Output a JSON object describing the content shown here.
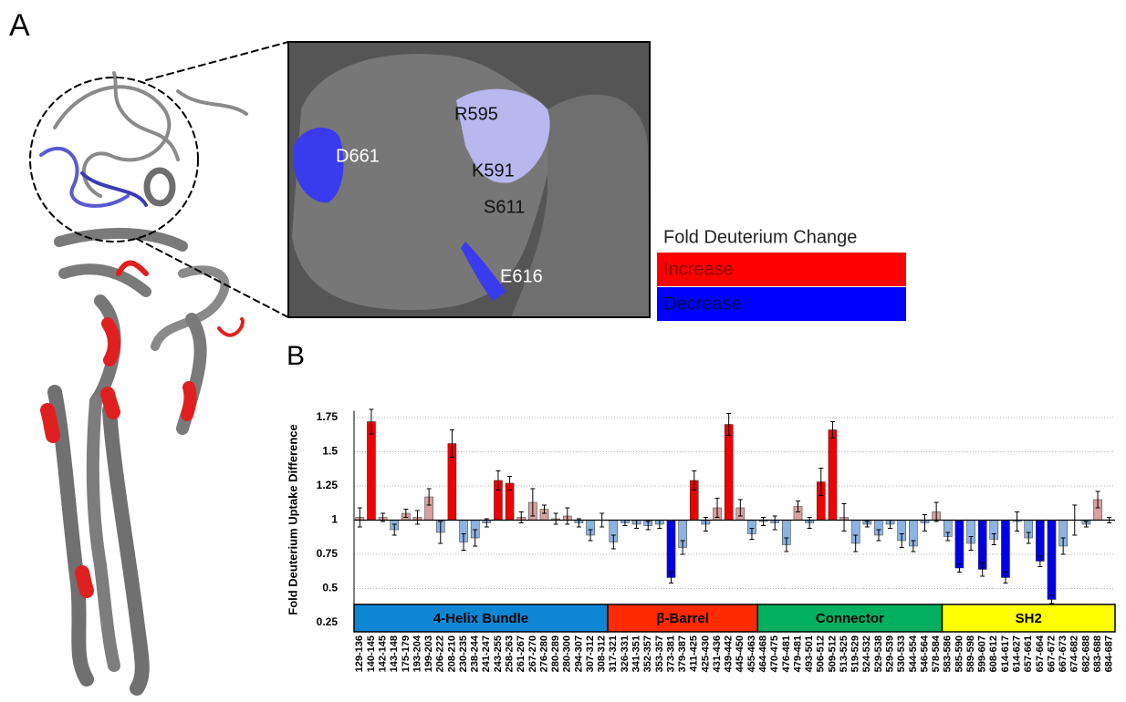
{
  "figure": {
    "panel_a": "A",
    "panel_b": "B",
    "residues": [
      "R595",
      "D661",
      "K591",
      "S611",
      "E616"
    ],
    "legend": {
      "title": "Fold Deuterium Change",
      "entries": [
        {
          "label": "Increase",
          "color": "#ff0000",
          "text_color": "#8a0000"
        },
        {
          "label": "Decrease",
          "color": "#0000ff",
          "text_color": "#000a55"
        }
      ]
    }
  },
  "chart_data": {
    "type": "bar",
    "y_label": "Fold Deuterium Uptake Difference",
    "categories": [
      "129-136",
      "140-145",
      "142-145",
      "143-148",
      "175-179",
      "193-204",
      "199-203",
      "206-222",
      "208-210",
      "230-235",
      "238-244",
      "241-247",
      "243-255",
      "258-263",
      "261-267",
      "267-270",
      "276-280",
      "280-289",
      "280-300",
      "294-307",
      "307-312",
      "308-312",
      "317-321",
      "326-331",
      "341-351",
      "352-357",
      "353-357",
      "373-381",
      "379-387",
      "411-425",
      "425-430",
      "431-436",
      "439-442",
      "445-450",
      "455-463",
      "464-468",
      "470-475",
      "476-481",
      "479-481",
      "493-501",
      "506-512",
      "509-512",
      "513-525",
      "519-529",
      "524-532",
      "529-538",
      "529-539",
      "530-533",
      "544-554",
      "546-564",
      "578-584",
      "583-586",
      "585-590",
      "589-598",
      "599-607",
      "608-612",
      "614-617",
      "614-627",
      "657-661",
      "657-664",
      "667-672",
      "667-673",
      "674-682",
      "682-688",
      "683-688",
      "684-687"
    ],
    "values": [
      1.02,
      1.72,
      1.02,
      0.93,
      1.05,
      1.02,
      1.17,
      0.91,
      1.56,
      0.84,
      0.87,
      0.98,
      1.29,
      1.27,
      1.02,
      1.13,
      1.08,
      1.01,
      1.03,
      0.98,
      0.89,
      1.0,
      0.84,
      0.98,
      0.97,
      0.96,
      0.97,
      0.58,
      0.8,
      1.29,
      0.97,
      1.09,
      1.7,
      1.09,
      0.9,
      0.99,
      0.98,
      0.82,
      1.1,
      0.98,
      1.28,
      1.66,
      1.02,
      0.83,
      0.97,
      0.89,
      0.97,
      0.85,
      0.81,
      0.98,
      1.06,
      0.88,
      0.65,
      0.83,
      0.64,
      0.86,
      0.58,
      0.99,
      0.87,
      0.7,
      0.42,
      0.81,
      1.0,
      0.97,
      1.15,
      1.0
    ],
    "errors": [
      0.07,
      0.09,
      0.03,
      0.04,
      0.03,
      0.05,
      0.06,
      0.08,
      0.1,
      0.06,
      0.06,
      0.03,
      0.07,
      0.05,
      0.04,
      0.1,
      0.03,
      0.04,
      0.06,
      0.03,
      0.04,
      0.05,
      0.05,
      0.02,
      0.03,
      0.03,
      0.03,
      0.04,
      0.05,
      0.07,
      0.05,
      0.07,
      0.08,
      0.06,
      0.04,
      0.03,
      0.05,
      0.05,
      0.04,
      0.04,
      0.1,
      0.06,
      0.1,
      0.06,
      0.02,
      0.04,
      0.03,
      0.05,
      0.04,
      0.06,
      0.07,
      0.03,
      0.03,
      0.05,
      0.05,
      0.04,
      0.04,
      0.07,
      0.04,
      0.04,
      0.03,
      0.06,
      0.11,
      0.02,
      0.06,
      0.02
    ],
    "colors": [
      "#d8a0a0",
      "#ee0000",
      "#d8a0a0",
      "#8db3e2",
      "#d8a0a0",
      "#d8a0a0",
      "#d8a0a0",
      "#8db3e2",
      "#ee0000",
      "#8db3e2",
      "#8db3e2",
      "#8db3e2",
      "#ee0000",
      "#ee0000",
      "#d8a0a0",
      "#d8a0a0",
      "#d8a0a0",
      "#d8a0a0",
      "#d8a0a0",
      "#8db3e2",
      "#8db3e2",
      "#8db3e2",
      "#8db3e2",
      "#8db3e2",
      "#8db3e2",
      "#8db3e2",
      "#8db3e2",
      "#0000e6",
      "#8db3e2",
      "#ee0000",
      "#8db3e2",
      "#d8a0a0",
      "#ee0000",
      "#d8a0a0",
      "#8db3e2",
      "#8db3e2",
      "#8db3e2",
      "#8db3e2",
      "#d8a0a0",
      "#8db3e2",
      "#ee0000",
      "#ee0000",
      "#d8a0a0",
      "#8db3e2",
      "#8db3e2",
      "#8db3e2",
      "#8db3e2",
      "#8db3e2",
      "#8db3e2",
      "#8db3e2",
      "#d8a0a0",
      "#8db3e2",
      "#0000e6",
      "#8db3e2",
      "#0000e6",
      "#8db3e2",
      "#0000e6",
      "#8db3e2",
      "#8db3e2",
      "#0000e6",
      "#0000e6",
      "#8db3e2",
      "#d8a0a0",
      "#8db3e2",
      "#d8a0a0",
      "#8db3e2"
    ],
    "x_axis_at": 1,
    "ylim": [
      0.2,
      1.8
    ],
    "yticks": [
      0.25,
      0.5,
      0.75,
      1,
      1.25,
      1.5,
      1.75
    ],
    "grid": true,
    "domains": [
      {
        "label": "4-Helix Bundle",
        "color": "#0e86d4",
        "first": "129-136",
        "last": "308-312"
      },
      {
        "label": "β-Barrel",
        "color": "#ff2a00",
        "first": "317-321",
        "last": "455-463"
      },
      {
        "label": "Connector",
        "color": "#00b060",
        "first": "464-468",
        "last": "578-584"
      },
      {
        "label": "SH2",
        "color": "#ffff00",
        "first": "583-586",
        "last": "684-687"
      }
    ]
  }
}
